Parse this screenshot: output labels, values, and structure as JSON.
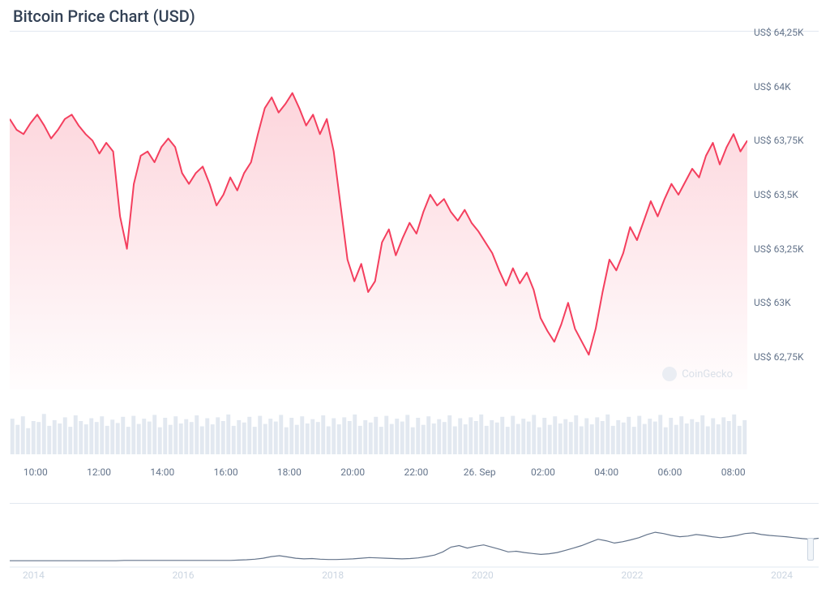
{
  "title": "Bitcoin Price Chart (USD)",
  "watermark": "CoinGecko",
  "main_chart": {
    "type": "area",
    "line_color": "#f43f5e",
    "line_width": 2,
    "fill_top_color": "rgba(244,63,94,0.22)",
    "fill_bottom_color": "rgba(244,63,94,0.01)",
    "background_color": "#ffffff",
    "ylim": [
      62600,
      64250
    ],
    "ytick_values": [
      62750,
      63000,
      63250,
      63500,
      63750,
      64000,
      64250
    ],
    "ytick_labels": [
      "US$ 62,75K",
      "US$ 63K",
      "US$ 63,25K",
      "US$ 63,5K",
      "US$ 63,75K",
      "US$ 64K",
      "US$ 64,25K"
    ],
    "xtick_positions": [
      0.035,
      0.121,
      0.207,
      0.293,
      0.379,
      0.465,
      0.551,
      0.637,
      0.723,
      0.809,
      0.895,
      0.981
    ],
    "xtick_labels": [
      "10:00",
      "12:00",
      "14:00",
      "16:00",
      "18:00",
      "20:00",
      "22:00",
      "26. Sep",
      "02:00",
      "04:00",
      "06:00",
      "08:00"
    ],
    "series": [
      63850,
      63800,
      63780,
      63830,
      63870,
      63820,
      63760,
      63800,
      63850,
      63870,
      63820,
      63780,
      63750,
      63690,
      63740,
      63700,
      63400,
      63250,
      63550,
      63680,
      63700,
      63650,
      63720,
      63760,
      63720,
      63600,
      63550,
      63600,
      63630,
      63550,
      63450,
      63500,
      63580,
      63520,
      63600,
      63650,
      63780,
      63900,
      63950,
      63880,
      63920,
      63970,
      63900,
      63820,
      63870,
      63780,
      63850,
      63700,
      63450,
      63200,
      63100,
      63180,
      63050,
      63100,
      63280,
      63340,
      63220,
      63300,
      63370,
      63320,
      63420,
      63500,
      63450,
      63480,
      63420,
      63380,
      63430,
      63370,
      63330,
      63280,
      63230,
      63150,
      63080,
      63160,
      63090,
      63140,
      63060,
      62930,
      62870,
      62820,
      62900,
      63000,
      62880,
      62820,
      62760,
      62880,
      63050,
      63200,
      63150,
      63230,
      63350,
      63290,
      63380,
      63470,
      63400,
      63480,
      63550,
      63500,
      63560,
      63620,
      63580,
      63680,
      63740,
      63640,
      63720,
      63780,
      63700,
      63750
    ]
  },
  "volume_chart": {
    "type": "bar",
    "bar_color": "#e2e8f0",
    "background_color": "#ffffff",
    "bar_count": 140,
    "values": [
      0.75,
      0.62,
      0.8,
      0.55,
      0.7,
      0.68,
      0.85,
      0.6,
      0.72,
      0.65,
      0.78,
      0.58,
      0.82,
      0.7,
      0.63,
      0.76,
      0.68,
      0.8,
      0.6,
      0.73,
      0.66,
      0.79,
      0.58,
      0.81,
      0.64,
      0.75,
      0.69,
      0.83,
      0.57,
      0.77,
      0.62,
      0.8,
      0.65,
      0.74,
      0.68,
      0.82,
      0.59,
      0.76,
      0.63,
      0.78,
      0.7,
      0.84,
      0.6,
      0.72,
      0.67,
      0.79,
      0.58,
      0.81,
      0.64,
      0.75,
      0.69,
      0.83,
      0.57,
      0.77,
      0.62,
      0.8,
      0.65,
      0.74,
      0.68,
      0.82,
      0.59,
      0.76,
      0.63,
      0.78,
      0.7,
      0.84,
      0.6,
      0.72,
      0.67,
      0.79,
      0.58,
      0.81,
      0.64,
      0.75,
      0.69,
      0.83,
      0.57,
      0.77,
      0.62,
      0.8,
      0.65,
      0.74,
      0.68,
      0.82,
      0.59,
      0.76,
      0.63,
      0.78,
      0.7,
      0.84,
      0.6,
      0.72,
      0.67,
      0.79,
      0.58,
      0.81,
      0.64,
      0.75,
      0.69,
      0.83,
      0.57,
      0.77,
      0.62,
      0.8,
      0.65,
      0.74,
      0.68,
      0.82,
      0.59,
      0.76,
      0.63,
      0.78,
      0.7,
      0.84,
      0.6,
      0.72,
      0.67,
      0.79,
      0.58,
      0.81,
      0.64,
      0.75,
      0.69,
      0.83,
      0.57,
      0.77,
      0.62,
      0.8,
      0.65,
      0.74,
      0.68,
      0.82,
      0.59,
      0.76,
      0.63,
      0.78,
      0.7,
      0.84,
      0.6,
      0.72
    ]
  },
  "brush_chart": {
    "type": "line",
    "line_color": "#64748b",
    "line_width": 1.2,
    "year_labels": [
      "2014",
      "2016",
      "2018",
      "2020",
      "2022",
      "2024"
    ],
    "year_positions": [
      0.03,
      0.215,
      0.4,
      0.585,
      0.77,
      0.955
    ],
    "series": [
      0.02,
      0.02,
      0.02,
      0.02,
      0.02,
      0.02,
      0.02,
      0.02,
      0.02,
      0.02,
      0.02,
      0.02,
      0.02,
      0.02,
      0.03,
      0.03,
      0.03,
      0.03,
      0.03,
      0.03,
      0.03,
      0.03,
      0.03,
      0.03,
      0.03,
      0.03,
      0.03,
      0.03,
      0.04,
      0.05,
      0.07,
      0.1,
      0.15,
      0.18,
      0.14,
      0.1,
      0.08,
      0.09,
      0.07,
      0.06,
      0.06,
      0.07,
      0.08,
      0.1,
      0.12,
      0.11,
      0.1,
      0.09,
      0.08,
      0.09,
      0.11,
      0.15,
      0.2,
      0.3,
      0.45,
      0.5,
      0.42,
      0.48,
      0.52,
      0.45,
      0.38,
      0.3,
      0.32,
      0.28,
      0.25,
      0.22,
      0.24,
      0.28,
      0.35,
      0.42,
      0.5,
      0.6,
      0.7,
      0.65,
      0.58,
      0.62,
      0.68,
      0.75,
      0.85,
      0.92,
      0.88,
      0.82,
      0.78,
      0.8,
      0.85,
      0.82,
      0.78,
      0.75,
      0.78,
      0.82,
      0.88,
      0.9,
      0.85,
      0.82,
      0.8,
      0.78,
      0.75,
      0.72,
      0.7,
      0.73
    ],
    "handle_position": 0.99
  }
}
